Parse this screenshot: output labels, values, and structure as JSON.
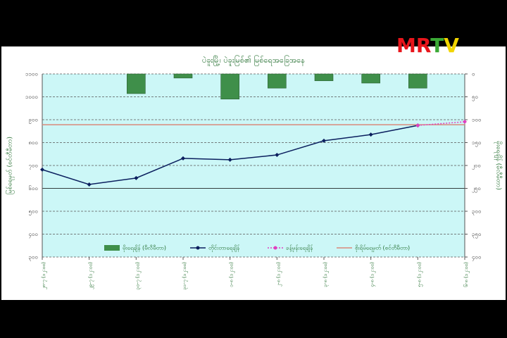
{
  "logo": {
    "letters": [
      {
        "text": "M",
        "color": "#e8151b"
      },
      {
        "text": "R",
        "color": "#e8151b"
      },
      {
        "text": "T",
        "color": "#3aa935"
      },
      {
        "text": "V",
        "color": "#f2d500"
      }
    ]
  },
  "chart_data": {
    "type": "combo",
    "title": "ပဲခူးမြို့၊ ပဲခူးမြစ်၏ မြစ်ရေအခြေအနေ",
    "y_label": "မြစ်ရေမှတ် (စင်တီမီတာ)",
    "y2_label": "မိုးရေချိန် (မီလီမီတာ)",
    "categories": [
      "၂၈-၇ (၁၂:၀၀)",
      "၂၉-၇ (၁၂:၀၀)",
      "၃၀-၇ (၁၂:၀၀)",
      "၃၁-၇ (၁၂:၀၀)",
      "၁-၈ (၁၂:၀၀)",
      "၂-၈ (၁၂:၀၀)",
      "၃-၈ (၁၂:၀၀)",
      "၄-၈ (၁၂:၀၀)",
      "၅-၈ (၁၂:၀၀)",
      "၆-၈ (၁၂:၀၀)"
    ],
    "series": [
      {
        "name": "မိုးရေချိန် (မီလီမီတာ)",
        "kind": "bar",
        "axis": "y2",
        "color": "#3f8f4a",
        "values": [
          null,
          null,
          43,
          9,
          55,
          31,
          15,
          20,
          31,
          null
        ]
      },
      {
        "name": "တိုင်းတာရေချိန်",
        "kind": "line",
        "color": "#0b1f5e",
        "values": [
          682,
          617,
          645,
          731,
          725,
          746,
          808,
          835,
          875,
          null
        ]
      },
      {
        "name": "ခန့်မှန်းရေချိန်",
        "kind": "dashed",
        "color": "#e040c0",
        "values": [
          null,
          null,
          null,
          null,
          null,
          null,
          null,
          null,
          875,
          891
        ]
      },
      {
        "name": "စိုးရိမ်ရေမှတ် (စင်တီမီတာ)",
        "kind": "level",
        "color": "#d9897a",
        "values": [
          878,
          878,
          878,
          878,
          878,
          878,
          878,
          878,
          878,
          878
        ]
      }
    ],
    "ylim": [
      300,
      1100
    ],
    "yticks": [
      {
        "value": 300,
        "label": "၃၀၀"
      },
      {
        "value": 400,
        "label": "၄၀၀"
      },
      {
        "value": 500,
        "label": "၅၀၀"
      },
      {
        "value": 600,
        "label": "၆၀၀"
      },
      {
        "value": 700,
        "label": "၇၀၀"
      },
      {
        "value": 800,
        "label": "၈၀၀"
      },
      {
        "value": 900,
        "label": "၉၀၀"
      },
      {
        "value": 1000,
        "label": "၁၀၀၀"
      },
      {
        "value": 1100,
        "label": "၁၁၀၀"
      }
    ],
    "y2lim": [
      400,
      0
    ],
    "y2ticks": [
      {
        "value": 0,
        "label": "၀"
      },
      {
        "value": 50,
        "label": "၅၀"
      },
      {
        "value": 100,
        "label": "၁၀၀"
      },
      {
        "value": 150,
        "label": "၁၅၀"
      },
      {
        "value": 200,
        "label": "၂၀၀"
      },
      {
        "value": 250,
        "label": "၂၅၀"
      },
      {
        "value": 300,
        "label": "၃၀၀"
      },
      {
        "value": 350,
        "label": "၃၅၀"
      },
      {
        "value": 400,
        "label": "၄၀၀"
      }
    ],
    "grid": true
  }
}
